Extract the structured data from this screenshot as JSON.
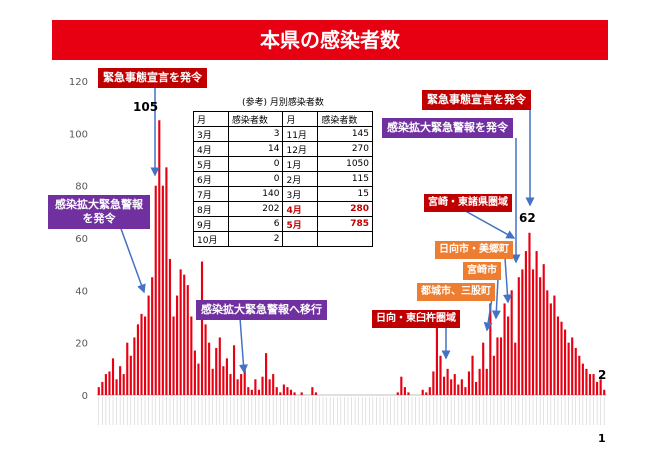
{
  "title": "本県の感染者数",
  "page_number": "1",
  "callouts": {
    "emergency_1": "緊急事態宣言を発令",
    "expansion_alert_1": "感染拡大緊急警報を発令",
    "shift_alert": "感染拡大緊急警報へ移行",
    "emergency_2": "緊急事態宣言を発令",
    "expansion_alert_2": "感染拡大緊急警報を発令",
    "miyazaki_higashimorokata": "宮崎・東諸県圏域",
    "hyuga_misato": "日向市・美郷町",
    "miyazaki_city": "宮崎市",
    "miyakonojo_mimata": "都城市、三股町",
    "hyuga_higashiusuki": "日向・東臼杵圏域"
  },
  "peaks": {
    "peak_1": "105",
    "peak_2": "62",
    "last_value": "2"
  },
  "ref_table": {
    "caption": "(参考) 月別感染者数",
    "header": [
      "月",
      "感染者数",
      "月",
      "感染者数"
    ],
    "rows": [
      {
        "m1": "3月",
        "v1": "3",
        "m2": "11月",
        "v2": "145",
        "hl": false
      },
      {
        "m1": "4月",
        "v1": "14",
        "m2": "12月",
        "v2": "270",
        "hl": false
      },
      {
        "m1": "5月",
        "v1": "0",
        "m2": "1月",
        "v2": "1050",
        "hl": false
      },
      {
        "m1": "6月",
        "v1": "0",
        "m2": "2月",
        "v2": "115",
        "hl": false
      },
      {
        "m1": "7月",
        "v1": "140",
        "m2": "3月",
        "v2": "15",
        "hl": false
      },
      {
        "m1": "8月",
        "v1": "202",
        "m2": "4月",
        "v2": "280",
        "hl": true
      },
      {
        "m1": "9月",
        "v1": "6",
        "m2": "5月",
        "v2": "785",
        "hl": true
      },
      {
        "m1": "10月",
        "v1": "2",
        "m2": "",
        "v2": "",
        "hl": false
      }
    ]
  },
  "colors": {
    "bar": "#e60012",
    "title": "#e60012",
    "callout_red": "#c00000",
    "callout_purple": "#7030a0",
    "callout_orange": "#ed7d31",
    "arrow": "#4472c4"
  },
  "chart_data": {
    "type": "bar",
    "title": "本県の感染者数",
    "ylim": [
      0,
      120
    ],
    "yticks": [
      0,
      20,
      40,
      60,
      80,
      100,
      120
    ],
    "grid": false,
    "series": [
      {
        "values": [
          3,
          5,
          8,
          9,
          14,
          6,
          11,
          8,
          20,
          15,
          22,
          27,
          31,
          30,
          38,
          45,
          80,
          105,
          80,
          87,
          52,
          30,
          38,
          48,
          46,
          42,
          30,
          17,
          12,
          51,
          27,
          20,
          10,
          18,
          22,
          11,
          14,
          8,
          19,
          6,
          8,
          10,
          3,
          2,
          6,
          2,
          7,
          16,
          6,
          8,
          3,
          1,
          4,
          3,
          2,
          1,
          0,
          1,
          0,
          0,
          3,
          1,
          0,
          0,
          0,
          0,
          0,
          0,
          0,
          0,
          0,
          0,
          0,
          0,
          0,
          0,
          0,
          0,
          0,
          0,
          0,
          0,
          0,
          0,
          1,
          7,
          3,
          1,
          0,
          0,
          0,
          2,
          1,
          3,
          9,
          27,
          15,
          7,
          10,
          6,
          8,
          4,
          6,
          3,
          9,
          15,
          5,
          10,
          20,
          10,
          35,
          15,
          22,
          22,
          35,
          30,
          40,
          20,
          45,
          48,
          55,
          62,
          48,
          55,
          45,
          50,
          40,
          35,
          38,
          30,
          28,
          25,
          20,
          22,
          18,
          15,
          12,
          10,
          8,
          8,
          5,
          6,
          2
        ]
      }
    ]
  }
}
